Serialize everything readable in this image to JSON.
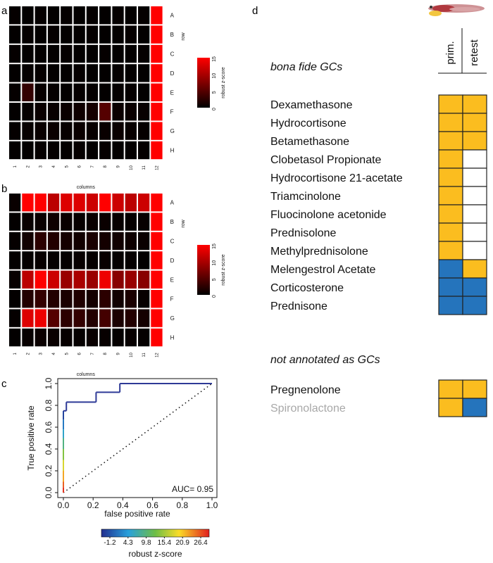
{
  "panel_labels": {
    "a": "a",
    "b": "b",
    "c": "c",
    "d": "d"
  },
  "heatmap_axis": {
    "columns_label": "columns",
    "row_label": "row",
    "col_ticks": [
      "1",
      "2",
      "3",
      "4",
      "5",
      "6",
      "7",
      "8",
      "9",
      "10",
      "11",
      "12"
    ],
    "row_ticks": [
      "A",
      "B",
      "C",
      "D",
      "E",
      "F",
      "G",
      "H"
    ]
  },
  "colorbar_heat": {
    "label": "robust z-score",
    "ticks": [
      "0",
      "5",
      "10",
      "15"
    ],
    "range": [
      0,
      15
    ]
  },
  "chart_data": [
    {
      "type": "heatmap",
      "panel": "a",
      "rows": [
        "A",
        "B",
        "C",
        "D",
        "E",
        "F",
        "G",
        "H"
      ],
      "columns": [
        "1",
        "2",
        "3",
        "4",
        "5",
        "6",
        "7",
        "8",
        "9",
        "10",
        "11",
        "12"
      ],
      "xlabel": "columns",
      "ylabel": "row",
      "colorbar_label": "robust z-score",
      "zlim": [
        0,
        15
      ],
      "values": [
        [
          0.3,
          0.2,
          0.3,
          0.2,
          0.3,
          0.2,
          0.3,
          0.2,
          0.3,
          0.2,
          0.3,
          15
        ],
        [
          0.2,
          0.3,
          0.2,
          0.3,
          0.2,
          0.2,
          0.3,
          0.2,
          0.2,
          0.3,
          0.2,
          15
        ],
        [
          0.3,
          0.2,
          0.2,
          0.2,
          0.3,
          0.2,
          0.2,
          0.3,
          0.2,
          0.2,
          0.3,
          15
        ],
        [
          0.2,
          0.3,
          0.3,
          0.2,
          0.2,
          0.3,
          0.2,
          0.2,
          0.3,
          0.2,
          0.2,
          15
        ],
        [
          0.3,
          3.0,
          0.4,
          0.3,
          0.2,
          0.3,
          0.3,
          0.2,
          0.3,
          0.3,
          0.2,
          15
        ],
        [
          0.2,
          0.3,
          0.5,
          0.4,
          0.6,
          0.8,
          1.2,
          5.0,
          0.6,
          0.5,
          0.4,
          15
        ],
        [
          0.3,
          0.4,
          0.5,
          0.6,
          0.4,
          0.5,
          0.4,
          0.5,
          0.6,
          0.4,
          0.3,
          15
        ],
        [
          0.2,
          0.2,
          0.3,
          0.3,
          0.2,
          0.3,
          0.2,
          0.3,
          0.2,
          0.2,
          0.3,
          15
        ]
      ]
    },
    {
      "type": "heatmap",
      "panel": "b",
      "rows": [
        "A",
        "B",
        "C",
        "D",
        "E",
        "F",
        "G",
        "H"
      ],
      "columns": [
        "1",
        "2",
        "3",
        "4",
        "5",
        "6",
        "7",
        "8",
        "9",
        "10",
        "11",
        "12"
      ],
      "xlabel": "columns",
      "ylabel": "row",
      "colorbar_label": "robust z-score",
      "zlim": [
        0,
        15
      ],
      "values": [
        [
          0.5,
          15,
          15,
          11,
          13,
          13,
          12,
          15,
          12,
          11,
          12,
          15
        ],
        [
          0.2,
          0.5,
          0.6,
          0.8,
          0.5,
          0.4,
          0.5,
          0.6,
          0.4,
          0.3,
          0.4,
          15
        ],
        [
          0.3,
          1.0,
          2.5,
          2.0,
          1.2,
          1.0,
          1.5,
          1.2,
          1.0,
          0.8,
          0.6,
          15
        ],
        [
          0.2,
          0.3,
          0.4,
          0.3,
          0.3,
          0.4,
          0.3,
          0.4,
          0.3,
          0.3,
          0.2,
          15
        ],
        [
          0.4,
          11,
          15,
          12,
          9,
          10,
          9,
          14,
          8,
          9,
          8,
          15
        ],
        [
          0.2,
          2.0,
          3.0,
          2.0,
          1.5,
          1.8,
          1.2,
          2.5,
          1.0,
          1.5,
          0.4,
          15
        ],
        [
          0.3,
          13,
          14,
          5,
          2.5,
          3,
          2,
          4,
          1.5,
          2,
          1.2,
          15
        ],
        [
          0.2,
          0.4,
          0.6,
          0.5,
          0.4,
          0.3,
          0.5,
          0.4,
          0.3,
          0.4,
          0.3,
          15
        ]
      ]
    },
    {
      "type": "line",
      "panel": "c",
      "title": "",
      "xlabel": "false positive rate",
      "ylabel": "True positive rate",
      "xlim": [
        0,
        1
      ],
      "ylim": [
        0,
        1
      ],
      "xticks": [
        "0.0",
        "0.2",
        "0.4",
        "0.6",
        "0.8",
        "1.0"
      ],
      "yticks": [
        "0.0",
        "0.2",
        "0.4",
        "0.6",
        "0.8",
        "1.0"
      ],
      "roc_points": [
        [
          0,
          0
        ],
        [
          0,
          0.05
        ],
        [
          0,
          0.1
        ],
        [
          0,
          0.2
        ],
        [
          0,
          0.3
        ],
        [
          0,
          0.4
        ],
        [
          0,
          0.5
        ],
        [
          0,
          0.58
        ],
        [
          0,
          0.67
        ],
        [
          0,
          0.75
        ],
        [
          0.02,
          0.75
        ],
        [
          0.02,
          0.83
        ],
        [
          0.22,
          0.83
        ],
        [
          0.22,
          0.92
        ],
        [
          0.38,
          0.92
        ],
        [
          0.38,
          1.0
        ],
        [
          1,
          1.0
        ]
      ],
      "diagonal": [
        [
          0,
          0
        ],
        [
          1,
          1
        ]
      ],
      "annotation": "AUC= 0.95",
      "colorbar_label": "robust z-score",
      "colorbar_ticks": [
        "-1.2",
        "4.3",
        "9.8",
        "15.4",
        "20.9",
        "26.4"
      ]
    },
    {
      "type": "table",
      "panel": "d",
      "columns": [
        "prim.",
        "retest"
      ],
      "groups": [
        {
          "label": "bona fide GCs",
          "rows": [
            {
              "name": "Dexamethasone",
              "cells": [
                "active",
                "active"
              ]
            },
            {
              "name": "Hydrocortisone",
              "cells": [
                "active",
                "active"
              ]
            },
            {
              "name": "Betamethasone",
              "cells": [
                "active",
                "active"
              ]
            },
            {
              "name": "Clobetasol Propionate",
              "cells": [
                "active",
                "none"
              ]
            },
            {
              "name": "Hydrocortisone 21-acetate",
              "cells": [
                "active",
                "none"
              ]
            },
            {
              "name": "Triamcinolone",
              "cells": [
                "active",
                "none"
              ]
            },
            {
              "name": "Fluocinolone acetonide",
              "cells": [
                "active",
                "none"
              ]
            },
            {
              "name": "Prednisolone",
              "cells": [
                "active",
                "none"
              ]
            },
            {
              "name": "Methylprednisolone",
              "cells": [
                "active",
                "none"
              ]
            },
            {
              "name": "Melengestrol Acetate",
              "cells": [
                "inactive",
                "active"
              ]
            },
            {
              "name": "Corticosterone",
              "cells": [
                "inactive",
                "inactive"
              ]
            },
            {
              "name": "Prednisone",
              "cells": [
                "inactive",
                "inactive"
              ]
            }
          ]
        },
        {
          "label": "not annotated as GCs",
          "rows": [
            {
              "name": "Pregnenolone",
              "cells": [
                "active",
                "active"
              ]
            },
            {
              "name": "Spironolactone",
              "cells": [
                "active",
                "inactive"
              ],
              "muted": true
            }
          ]
        }
      ]
    }
  ],
  "colors": {
    "active": "#fbbd1f",
    "inactive": "#2574bc",
    "none": "#ffffff",
    "muted_text": "#a8a8a8",
    "roc_line": "#2e3a97"
  }
}
